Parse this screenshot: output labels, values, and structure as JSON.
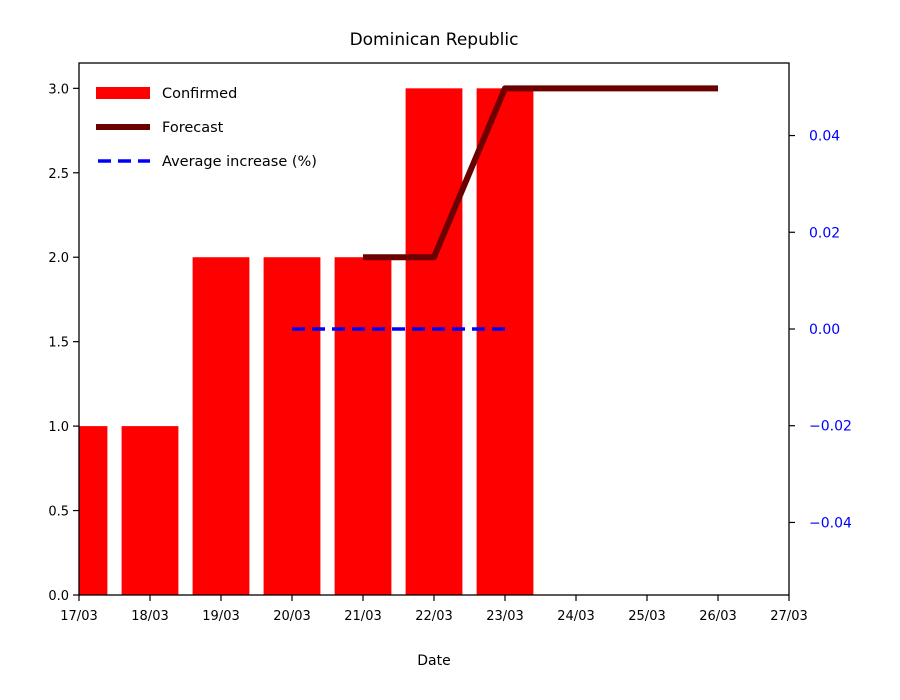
{
  "chart_data": {
    "type": "bar",
    "title": "Dominican Republic",
    "xlabel": "Date",
    "ylabel": "",
    "categories": [
      "17/03",
      "18/03",
      "19/03",
      "20/03",
      "21/03",
      "22/03",
      "23/03",
      "24/03",
      "25/03",
      "26/03",
      "27/03"
    ],
    "ylim": [
      0,
      3.15
    ],
    "yticks": [
      "0.0",
      "0.5",
      "1.0",
      "1.5",
      "2.0",
      "2.5",
      "3.0"
    ],
    "ytick_values": [
      0,
      0.5,
      1.0,
      1.5,
      2.0,
      2.5,
      3.0
    ],
    "y2lim": [
      -0.055,
      0.055
    ],
    "y2ticks": [
      "−0.04",
      "−0.02",
      "0.00",
      "0.02",
      "0.04"
    ],
    "y2tick_values": [
      -0.04,
      -0.02,
      0.0,
      0.02,
      0.04
    ],
    "grid": false,
    "legend_position": "top-left",
    "series": [
      {
        "name": "Confirmed",
        "kind": "bar",
        "color": "#ff0000",
        "x": [
          "17/03",
          "18/03",
          "19/03",
          "20/03",
          "21/03",
          "22/03",
          "23/03"
        ],
        "values": [
          1,
          1,
          2,
          2,
          2,
          3,
          3
        ]
      },
      {
        "name": "Forecast",
        "kind": "line",
        "color": "#6b0000",
        "x": [
          "21/03",
          "22/03",
          "23/03",
          "24/03",
          "25/03",
          "26/03"
        ],
        "values": [
          2,
          2,
          3,
          3,
          3,
          3
        ]
      },
      {
        "name": "Average increase (%)",
        "kind": "dashed-line",
        "axis": "right",
        "color": "#0000ff",
        "x": [
          "20/03",
          "21/03",
          "22/03",
          "23/03"
        ],
        "values": [
          0.0,
          0.0,
          0.0,
          0.0
        ]
      }
    ]
  }
}
